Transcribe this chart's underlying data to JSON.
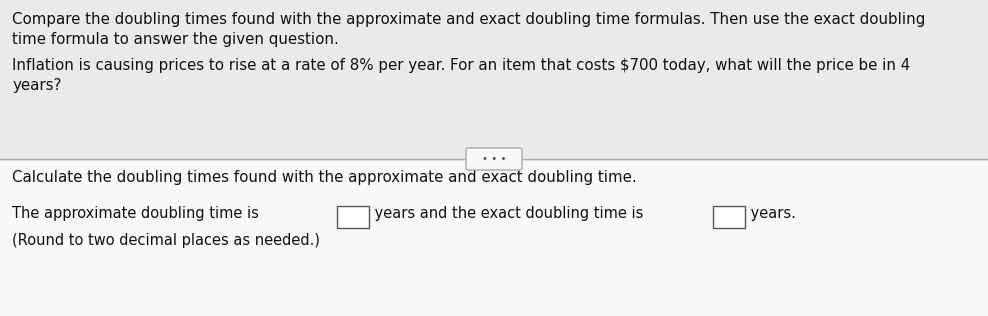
{
  "top_bg": "#e8eaec",
  "white_bg": "#f5f5f3",
  "bottom_bg": "#f8f8f7",
  "text_color": "#111111",
  "para1_line1": "Compare the doubling times found with the approximate and exact doubling time formulas. Then use the exact doubling",
  "para1_line2": "time formula to answer the given question.",
  "para2_line1": "Inflation is causing prices to rise at a rate of 8% per year. For an item that costs $700 today, what will the price be in 4",
  "para2_line2": "years?",
  "divider_color": "#b0b0b0",
  "dots_label": "• • •",
  "para3": "Calculate the doubling times found with the approximate and exact doubling time.",
  "para4_prefix": "The approximate doubling time is ",
  "para4_middle": " years and the exact doubling time is ",
  "para4_suffix": " years.",
  "para5": "(Round to two decimal places as needed.)",
  "font_size_main": 10.8,
  "font_size_small": 10.5,
  "font_size_dots": 7.5,
  "box_edge_color": "#555555",
  "btn_face": "#f8f8f8",
  "btn_edge": "#aaaaaa"
}
